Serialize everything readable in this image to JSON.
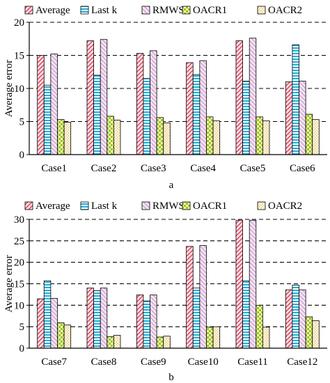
{
  "series_styles": [
    {
      "name": "Average",
      "fill": "#f2c7cf",
      "stroke": "#c8102e",
      "pattern": "diag-up"
    },
    {
      "name": "Last k",
      "fill": "#d9f4fb",
      "stroke": "#1aa6d0",
      "pattern": "horiz"
    },
    {
      "name": "RMWS",
      "fill": "#ead3ec",
      "stroke": "#c9a0cd",
      "pattern": "diag-down"
    },
    {
      "name": "OACR1",
      "fill": "#e4f3a8",
      "stroke": "#7fb000",
      "pattern": "check"
    },
    {
      "name": "OACR2",
      "fill": "#fbf6d8",
      "stroke": "#c7a24a",
      "pattern": "dots"
    }
  ],
  "chart_data": [
    {
      "type": "bar",
      "caption": "a",
      "ylabel": "Average error",
      "ylim": [
        0,
        20
      ],
      "yticks": [
        0,
        5,
        10,
        15,
        20
      ],
      "grid": "dashed horizontal",
      "legend_position": "top",
      "categories": [
        "Case1",
        "Case2",
        "Case3",
        "Case4",
        "Case5",
        "Case6"
      ],
      "series": [
        {
          "name": "Average",
          "values": [
            15.0,
            17.2,
            15.3,
            13.9,
            17.2,
            11.0
          ]
        },
        {
          "name": "Last k",
          "values": [
            10.5,
            12.0,
            11.5,
            12.1,
            11.1,
            16.6
          ]
        },
        {
          "name": "RMWS",
          "values": [
            15.2,
            17.4,
            15.7,
            14.2,
            17.6,
            11.1
          ]
        },
        {
          "name": "OACR1",
          "values": [
            5.3,
            5.8,
            5.6,
            5.7,
            5.7,
            6.1
          ]
        },
        {
          "name": "OACR2",
          "values": [
            4.9,
            5.2,
            4.8,
            5.1,
            5.1,
            5.3
          ]
        }
      ]
    },
    {
      "type": "bar",
      "caption": "b",
      "ylabel": "Average error",
      "ylim": [
        0,
        30
      ],
      "yticks": [
        0,
        5,
        10,
        15,
        20,
        25,
        30
      ],
      "grid": "dashed horizontal",
      "legend_position": "top",
      "categories": [
        "Case7",
        "Case8",
        "Case9",
        "Case10",
        "Case11",
        "Case12"
      ],
      "series": [
        {
          "name": "Average",
          "values": [
            11.5,
            14.0,
            12.4,
            23.7,
            29.8,
            13.6
          ]
        },
        {
          "name": "Last k",
          "values": [
            15.7,
            13.4,
            11.0,
            14.0,
            15.7,
            14.7
          ]
        },
        {
          "name": "RMWS",
          "values": [
            11.6,
            14.0,
            12.4,
            23.9,
            29.8,
            13.6
          ]
        },
        {
          "name": "OACR1",
          "values": [
            5.9,
            2.7,
            2.6,
            4.9,
            10.0,
            7.3
          ]
        },
        {
          "name": "OACR2",
          "values": [
            5.4,
            3.0,
            2.8,
            5.0,
            4.9,
            6.4
          ]
        }
      ]
    }
  ]
}
